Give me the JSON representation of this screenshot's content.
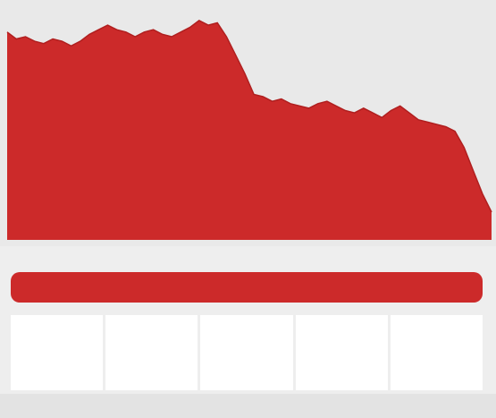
{
  "headline": "",
  "subhead": "",
  "description": "",
  "stats": [
    {
      "value": "",
      "label": ""
    },
    {
      "value": "",
      "label": ""
    }
  ],
  "table": {
    "caption": "",
    "headers": [
      "",
      "",
      "",
      "",
      ""
    ],
    "columns": [
      "",
      "",
      "",
      "",
      ""
    ]
  },
  "colors": {
    "fill": "#cc2a2a",
    "background": "#e9e9e9",
    "bar": "#cc2a2a"
  },
  "chart_data": {
    "type": "area",
    "title": "",
    "xlabel": "",
    "ylabel": "",
    "x": [
      0,
      1,
      2,
      3,
      4,
      5,
      6,
      7,
      8,
      9,
      10,
      11,
      12,
      13,
      14,
      15,
      16,
      17,
      18,
      19,
      20,
      21,
      22,
      23,
      24,
      25,
      26,
      27,
      28,
      29,
      30,
      31,
      32,
      33,
      34,
      35,
      36,
      37,
      38,
      39,
      40,
      41,
      42,
      43,
      44,
      45,
      46,
      47,
      48,
      49,
      50,
      51,
      52,
      53
    ],
    "values": [
      90,
      87,
      88,
      86,
      85,
      87,
      86,
      84,
      86,
      89,
      91,
      93,
      91,
      90,
      88,
      90,
      91,
      89,
      88,
      90,
      92,
      95,
      93,
      94,
      88,
      80,
      72,
      63,
      62,
      60,
      61,
      59,
      58,
      57,
      59,
      60,
      58,
      56,
      55,
      57,
      55,
      53,
      56,
      58,
      55,
      52,
      51,
      50,
      49,
      47,
      40,
      30,
      20,
      12
    ],
    "ylim": [
      0,
      100
    ]
  }
}
